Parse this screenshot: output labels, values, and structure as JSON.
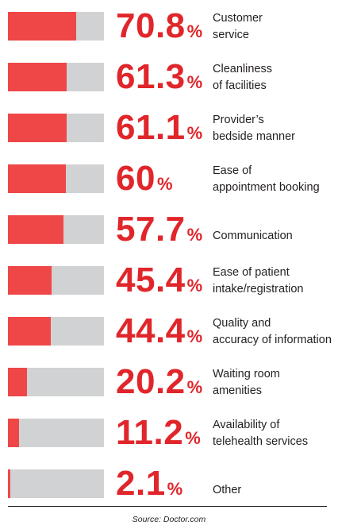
{
  "chart_data": {
    "type": "bar",
    "orientation": "horizontal",
    "unit": "%",
    "xlim": [
      0,
      100
    ],
    "categories": [
      [
        "Customer",
        "service"
      ],
      [
        "Cleanliness",
        "of facilities"
      ],
      [
        "Provider’s",
        "bedside manner"
      ],
      [
        "Ease of",
        "appointment booking"
      ],
      [
        "Communication"
      ],
      [
        "Ease of patient",
        "intake/registration"
      ],
      [
        "Quality and",
        "accuracy of information"
      ],
      [
        "Waiting room",
        "amenities"
      ],
      [
        "Availability of",
        "telehealth services"
      ],
      [
        "Other"
      ]
    ],
    "values": [
      70.8,
      61.3,
      61.1,
      60,
      57.7,
      45.4,
      44.4,
      20.2,
      11.2,
      2.1
    ],
    "value_labels": [
      "70.8",
      "61.3",
      "61.1",
      "60",
      "57.7",
      "45.4",
      "44.4",
      "20.2",
      "11.2",
      "2.1"
    ],
    "value_suffix": "%",
    "source": "Source: Doctor.com",
    "colors": {
      "bar": "#ef4747",
      "track": "#d1d2d4",
      "value_text": "#e0262b",
      "label_text": "#231f20"
    }
  }
}
